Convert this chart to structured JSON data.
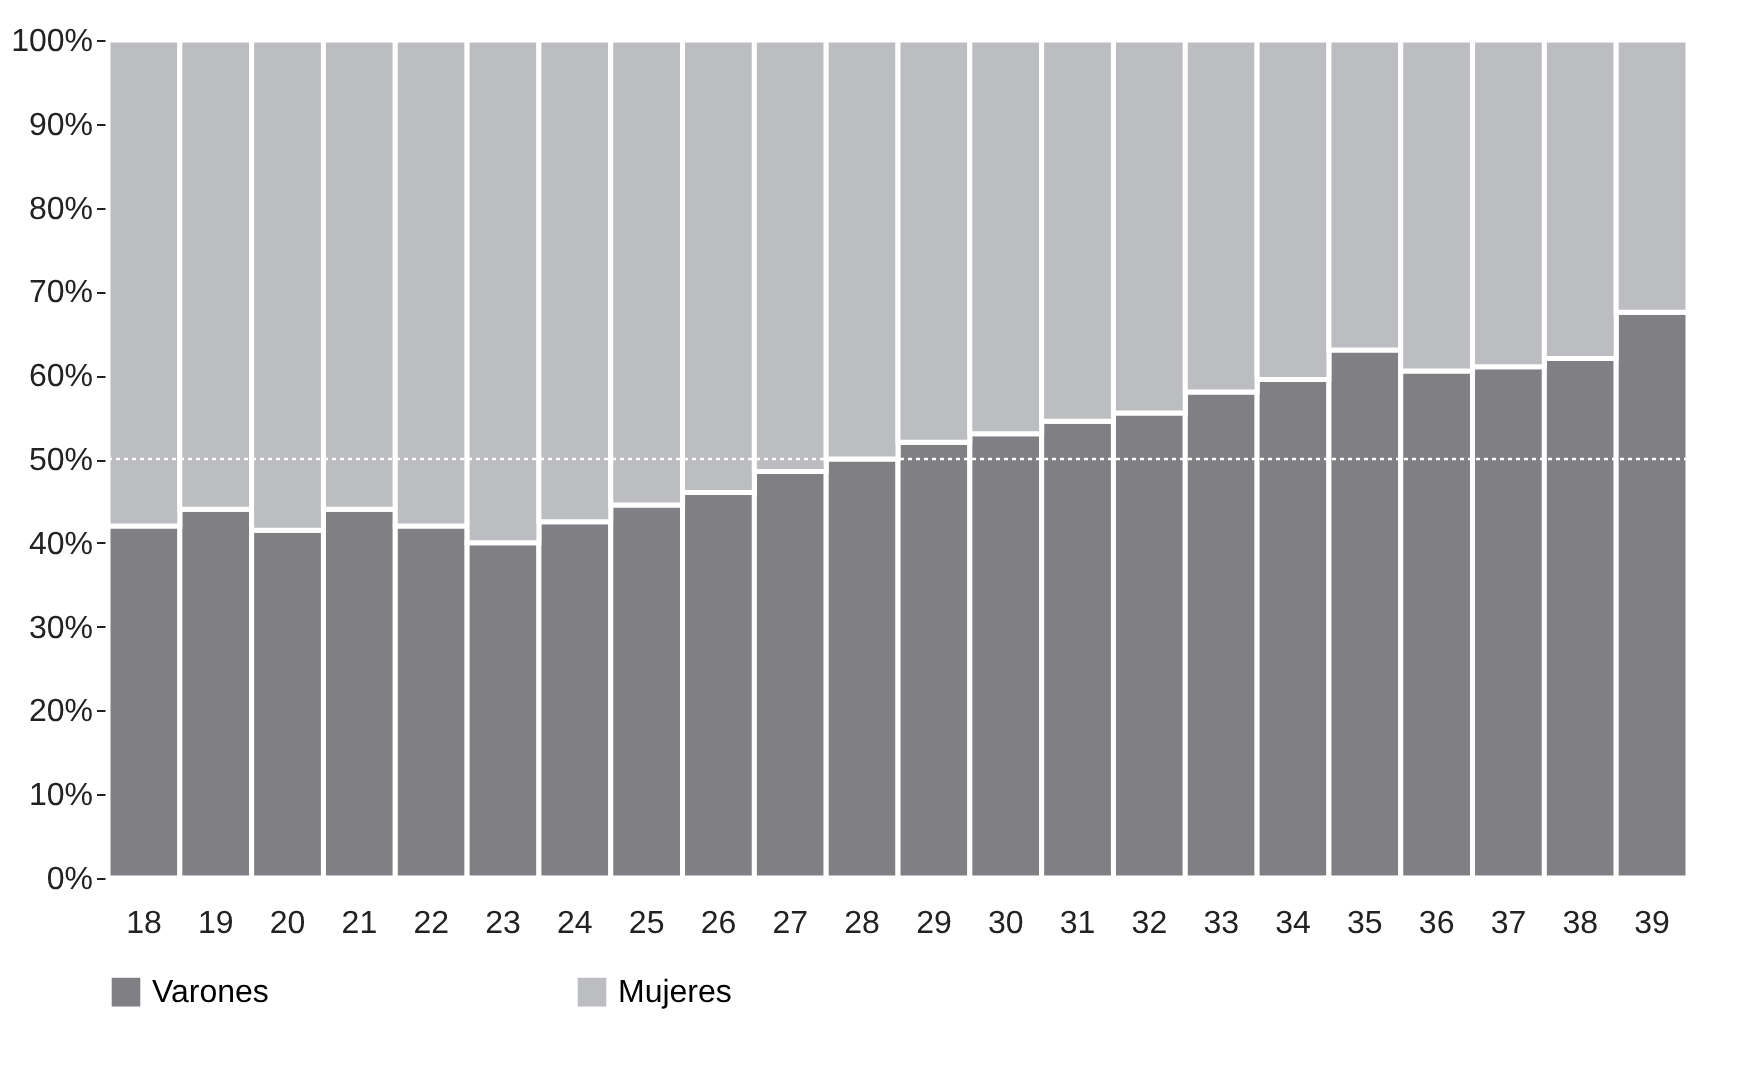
{
  "chart_data": {
    "type": "bar",
    "stacked": true,
    "categories": [
      "18",
      "19",
      "20",
      "21",
      "22",
      "23",
      "24",
      "25",
      "26",
      "27",
      "28",
      "29",
      "30",
      "31",
      "32",
      "33",
      "34",
      "35",
      "36",
      "37",
      "38",
      "39"
    ],
    "series": [
      {
        "name": "Varones",
        "color": "#808084",
        "values": [
          42,
          44,
          41.5,
          44,
          42,
          40,
          42.5,
          44.5,
          46,
          48.5,
          50,
          52,
          53,
          54.5,
          55.5,
          58,
          59.5,
          63,
          60.5,
          61,
          62,
          67.5
        ]
      },
      {
        "name": "Mujeres",
        "color": "#bcbdc1",
        "values": [
          58,
          56,
          58.5,
          56,
          58,
          60,
          57.5,
          55.5,
          54,
          51.5,
          50,
          48,
          47,
          45.5,
          44.5,
          42,
          40.5,
          37,
          39.5,
          39,
          38,
          32.5
        ]
      }
    ],
    "ylim": [
      0,
      100
    ],
    "yticks": [
      {
        "value": 0,
        "label": "0%"
      },
      {
        "value": 10,
        "label": "10%"
      },
      {
        "value": 20,
        "label": "20%"
      },
      {
        "value": 30,
        "label": "30%"
      },
      {
        "value": 40,
        "label": "40%"
      },
      {
        "value": 50,
        "label": "50%"
      },
      {
        "value": 60,
        "label": "60%"
      },
      {
        "value": 70,
        "label": "70%"
      },
      {
        "value": 80,
        "label": "80%"
      },
      {
        "value": 90,
        "label": "90%"
      },
      {
        "value": 100,
        "label": "100%"
      }
    ],
    "ref_lines": [
      {
        "axis": "y",
        "value": 50,
        "color": "#ffffff",
        "line_style": "dotted"
      }
    ],
    "legend": "bottom"
  }
}
